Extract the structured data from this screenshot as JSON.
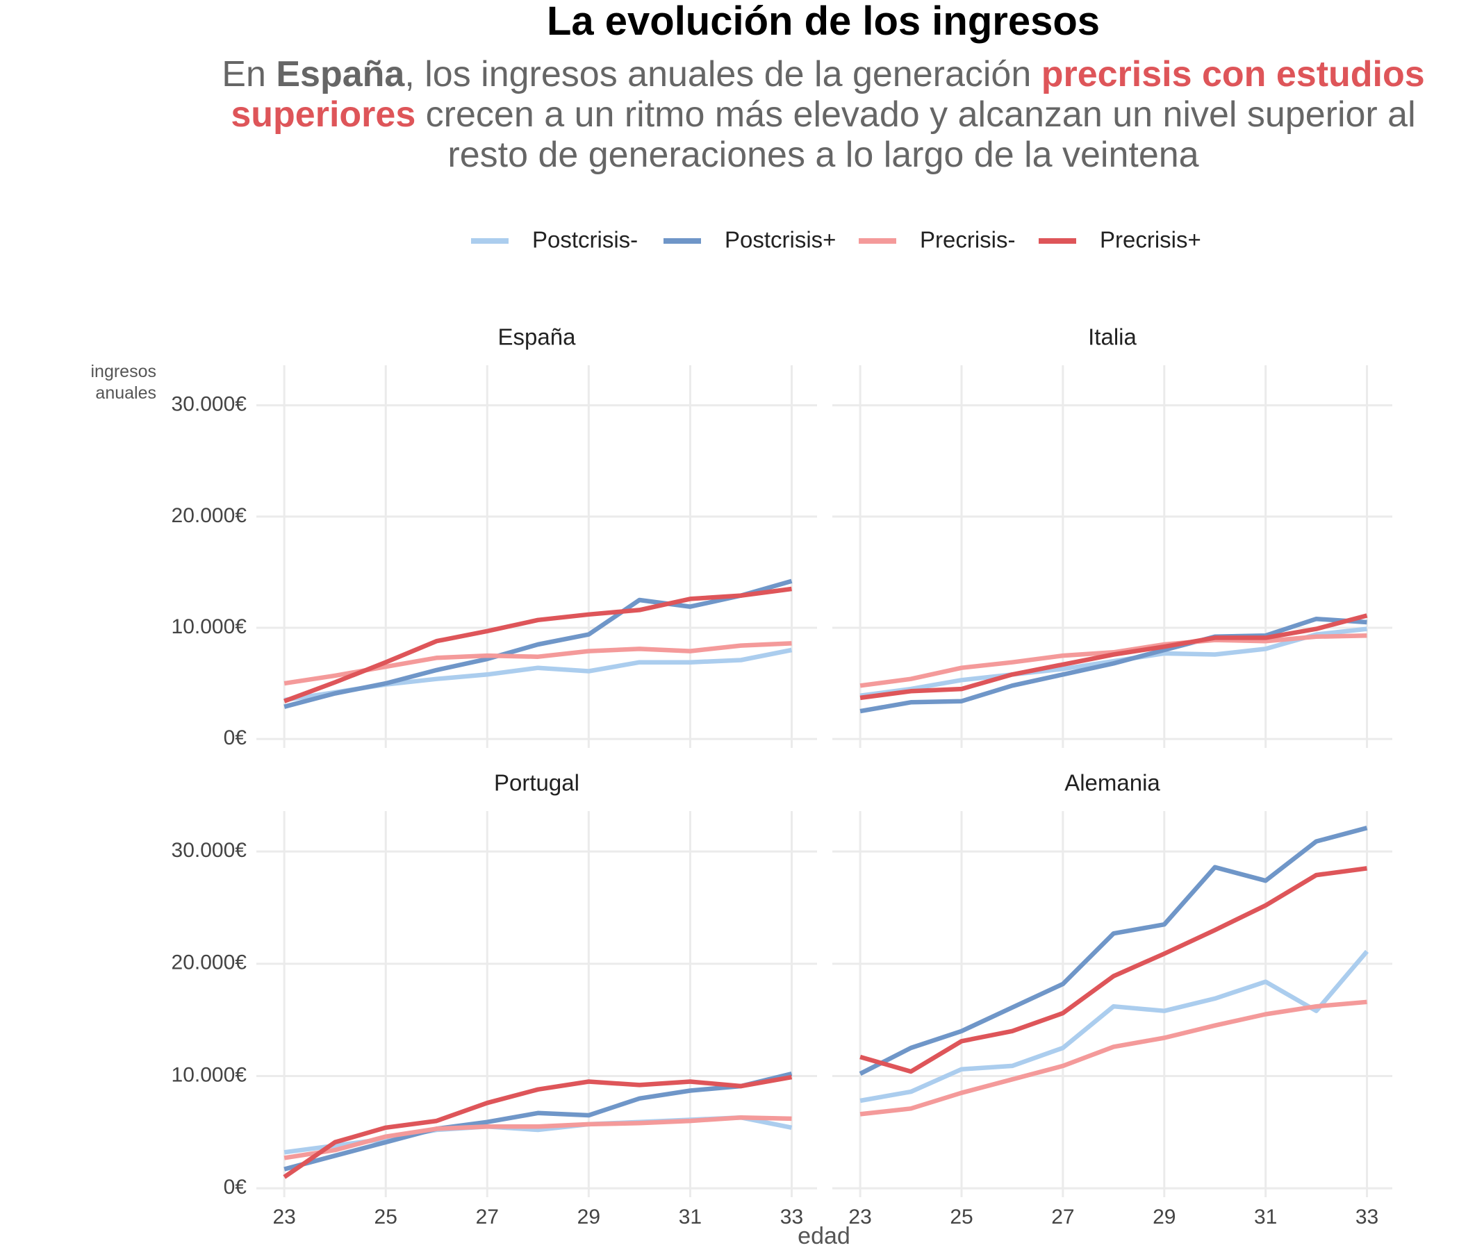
{
  "header": {
    "title": "La evolución de los ingresos",
    "subtitle": [
      "En ",
      "España",
      ", los ingresos anuales de la generación ",
      "precrisis con estudios superiores",
      " crecen a un ritmo más elevado y alcanzan un nivel superior al resto de generaciones a lo largo de la veintena"
    ],
    "xlabel": "edad",
    "ylabel": "ingresos anuales"
  },
  "chart_data": [
    {
      "type": "line",
      "title": "España",
      "x": [
        23,
        24,
        25,
        26,
        27,
        28,
        29,
        30,
        31,
        32,
        33
      ],
      "xlim": [
        22.45,
        33.5
      ],
      "xticks": [
        23,
        25,
        27,
        29,
        31,
        33
      ],
      "ylim": [
        -800,
        33600
      ],
      "yticks": [
        {
          "value": 0,
          "label": "0€"
        },
        {
          "value": 10000,
          "label": "10.000€"
        },
        {
          "value": 20000,
          "label": "20.000€"
        },
        {
          "value": 30000,
          "label": "30.000€"
        }
      ],
      "grid": true,
      "series": [
        {
          "name": "Postcrisis-",
          "color": "#abcdee",
          "values": [
            3500,
            4200,
            4900,
            5400,
            5800,
            6400,
            6100,
            6900,
            6900,
            7100,
            8000
          ]
        },
        {
          "name": "Postcrisis+",
          "color": "#6f96c8",
          "values": [
            2900,
            4100,
            5000,
            6200,
            7200,
            8500,
            9400,
            12500,
            11900,
            12900,
            14200
          ]
        },
        {
          "name": "Precrisis-",
          "color": "#f49a9a",
          "values": [
            5000,
            5700,
            6500,
            7300,
            7500,
            7400,
            7900,
            8100,
            7900,
            8400,
            8600
          ]
        },
        {
          "name": "Precrisis+",
          "color": "#de5559",
          "values": [
            3400,
            5100,
            6900,
            8800,
            9700,
            10700,
            11200,
            11600,
            12600,
            12900,
            13500
          ]
        }
      ]
    },
    {
      "type": "line",
      "title": "Italia",
      "x": [
        23,
        24,
        25,
        26,
        27,
        28,
        29,
        30,
        31,
        32,
        33
      ],
      "xlim": [
        22.45,
        33.5
      ],
      "xticks": [
        23,
        25,
        27,
        29,
        31,
        33
      ],
      "ylim": [
        -800,
        33600
      ],
      "yticks": [
        {
          "value": 0,
          "label": "0€"
        },
        {
          "value": 10000,
          "label": "10.000€"
        },
        {
          "value": 20000,
          "label": "20.000€"
        },
        {
          "value": 30000,
          "label": "30.000€"
        }
      ],
      "grid": true,
      "series": [
        {
          "name": "Postcrisis-",
          "color": "#abcdee",
          "values": [
            3900,
            4500,
            5300,
            5800,
            6300,
            7000,
            7700,
            7600,
            8100,
            9400,
            9900
          ]
        },
        {
          "name": "Postcrisis+",
          "color": "#6f96c8",
          "values": [
            2500,
            3300,
            3400,
            4800,
            5800,
            6800,
            8000,
            9200,
            9300,
            10800,
            10500
          ]
        },
        {
          "name": "Precrisis-",
          "color": "#f49a9a",
          "values": [
            4800,
            5400,
            6400,
            6900,
            7500,
            7800,
            8500,
            8900,
            8800,
            9200,
            9300
          ]
        },
        {
          "name": "Precrisis+",
          "color": "#de5559",
          "values": [
            3700,
            4300,
            4500,
            5800,
            6700,
            7600,
            8300,
            9100,
            9100,
            9900,
            11100
          ]
        }
      ]
    },
    {
      "type": "line",
      "title": "Portugal",
      "x": [
        23,
        24,
        25,
        26,
        27,
        28,
        29,
        30,
        31,
        32,
        33
      ],
      "xlim": [
        22.45,
        33.5
      ],
      "xticks": [
        23,
        25,
        27,
        29,
        31,
        33
      ],
      "ylim": [
        -800,
        33600
      ],
      "yticks": [
        {
          "value": 0,
          "label": "0€"
        },
        {
          "value": 10000,
          "label": "10.000€"
        },
        {
          "value": 20000,
          "label": "20.000€"
        },
        {
          "value": 30000,
          "label": "30.000€"
        }
      ],
      "grid": true,
      "series": [
        {
          "name": "Postcrisis-",
          "color": "#abcdee",
          "values": [
            3200,
            3800,
            4400,
            5200,
            5500,
            5200,
            5700,
            5900,
            6100,
            6300,
            5400
          ]
        },
        {
          "name": "Postcrisis+",
          "color": "#6f96c8",
          "values": [
            1700,
            2900,
            4100,
            5300,
            5900,
            6700,
            6500,
            8000,
            8700,
            9100,
            10200
          ]
        },
        {
          "name": "Precrisis-",
          "color": "#f49a9a",
          "values": [
            2700,
            3400,
            4600,
            5300,
            5500,
            5500,
            5700,
            5800,
            6000,
            6300,
            6200
          ]
        },
        {
          "name": "Precrisis+",
          "color": "#de5559",
          "values": [
            1000,
            4100,
            5400,
            6000,
            7600,
            8800,
            9500,
            9200,
            9500,
            9100,
            9900
          ]
        }
      ]
    },
    {
      "type": "line",
      "title": "Alemania",
      "x": [
        23,
        24,
        25,
        26,
        27,
        28,
        29,
        30,
        31,
        32,
        33
      ],
      "xlim": [
        22.45,
        33.5
      ],
      "xticks": [
        23,
        25,
        27,
        29,
        31,
        33
      ],
      "ylim": [
        -800,
        33600
      ],
      "yticks": [
        {
          "value": 0,
          "label": "0€"
        },
        {
          "value": 10000,
          "label": "10.000€"
        },
        {
          "value": 20000,
          "label": "20.000€"
        },
        {
          "value": 30000,
          "label": "30.000€"
        }
      ],
      "grid": true,
      "series": [
        {
          "name": "Postcrisis-",
          "color": "#abcdee",
          "values": [
            7800,
            8600,
            10600,
            10900,
            12500,
            16200,
            15800,
            16900,
            18400,
            15800,
            21100
          ]
        },
        {
          "name": "Postcrisis+",
          "color": "#6f96c8",
          "values": [
            10200,
            12500,
            14000,
            16100,
            18200,
            22700,
            23500,
            28600,
            27400,
            30900,
            32100
          ]
        },
        {
          "name": "Precrisis-",
          "color": "#f49a9a",
          "values": [
            6600,
            7100,
            8500,
            9700,
            10900,
            12600,
            13400,
            14500,
            15500,
            16200,
            16600
          ]
        },
        {
          "name": "Precrisis+",
          "color": "#de5559",
          "values": [
            11700,
            10400,
            13100,
            14000,
            15600,
            18900,
            20900,
            23000,
            25200,
            27900,
            28500
          ]
        }
      ]
    }
  ]
}
